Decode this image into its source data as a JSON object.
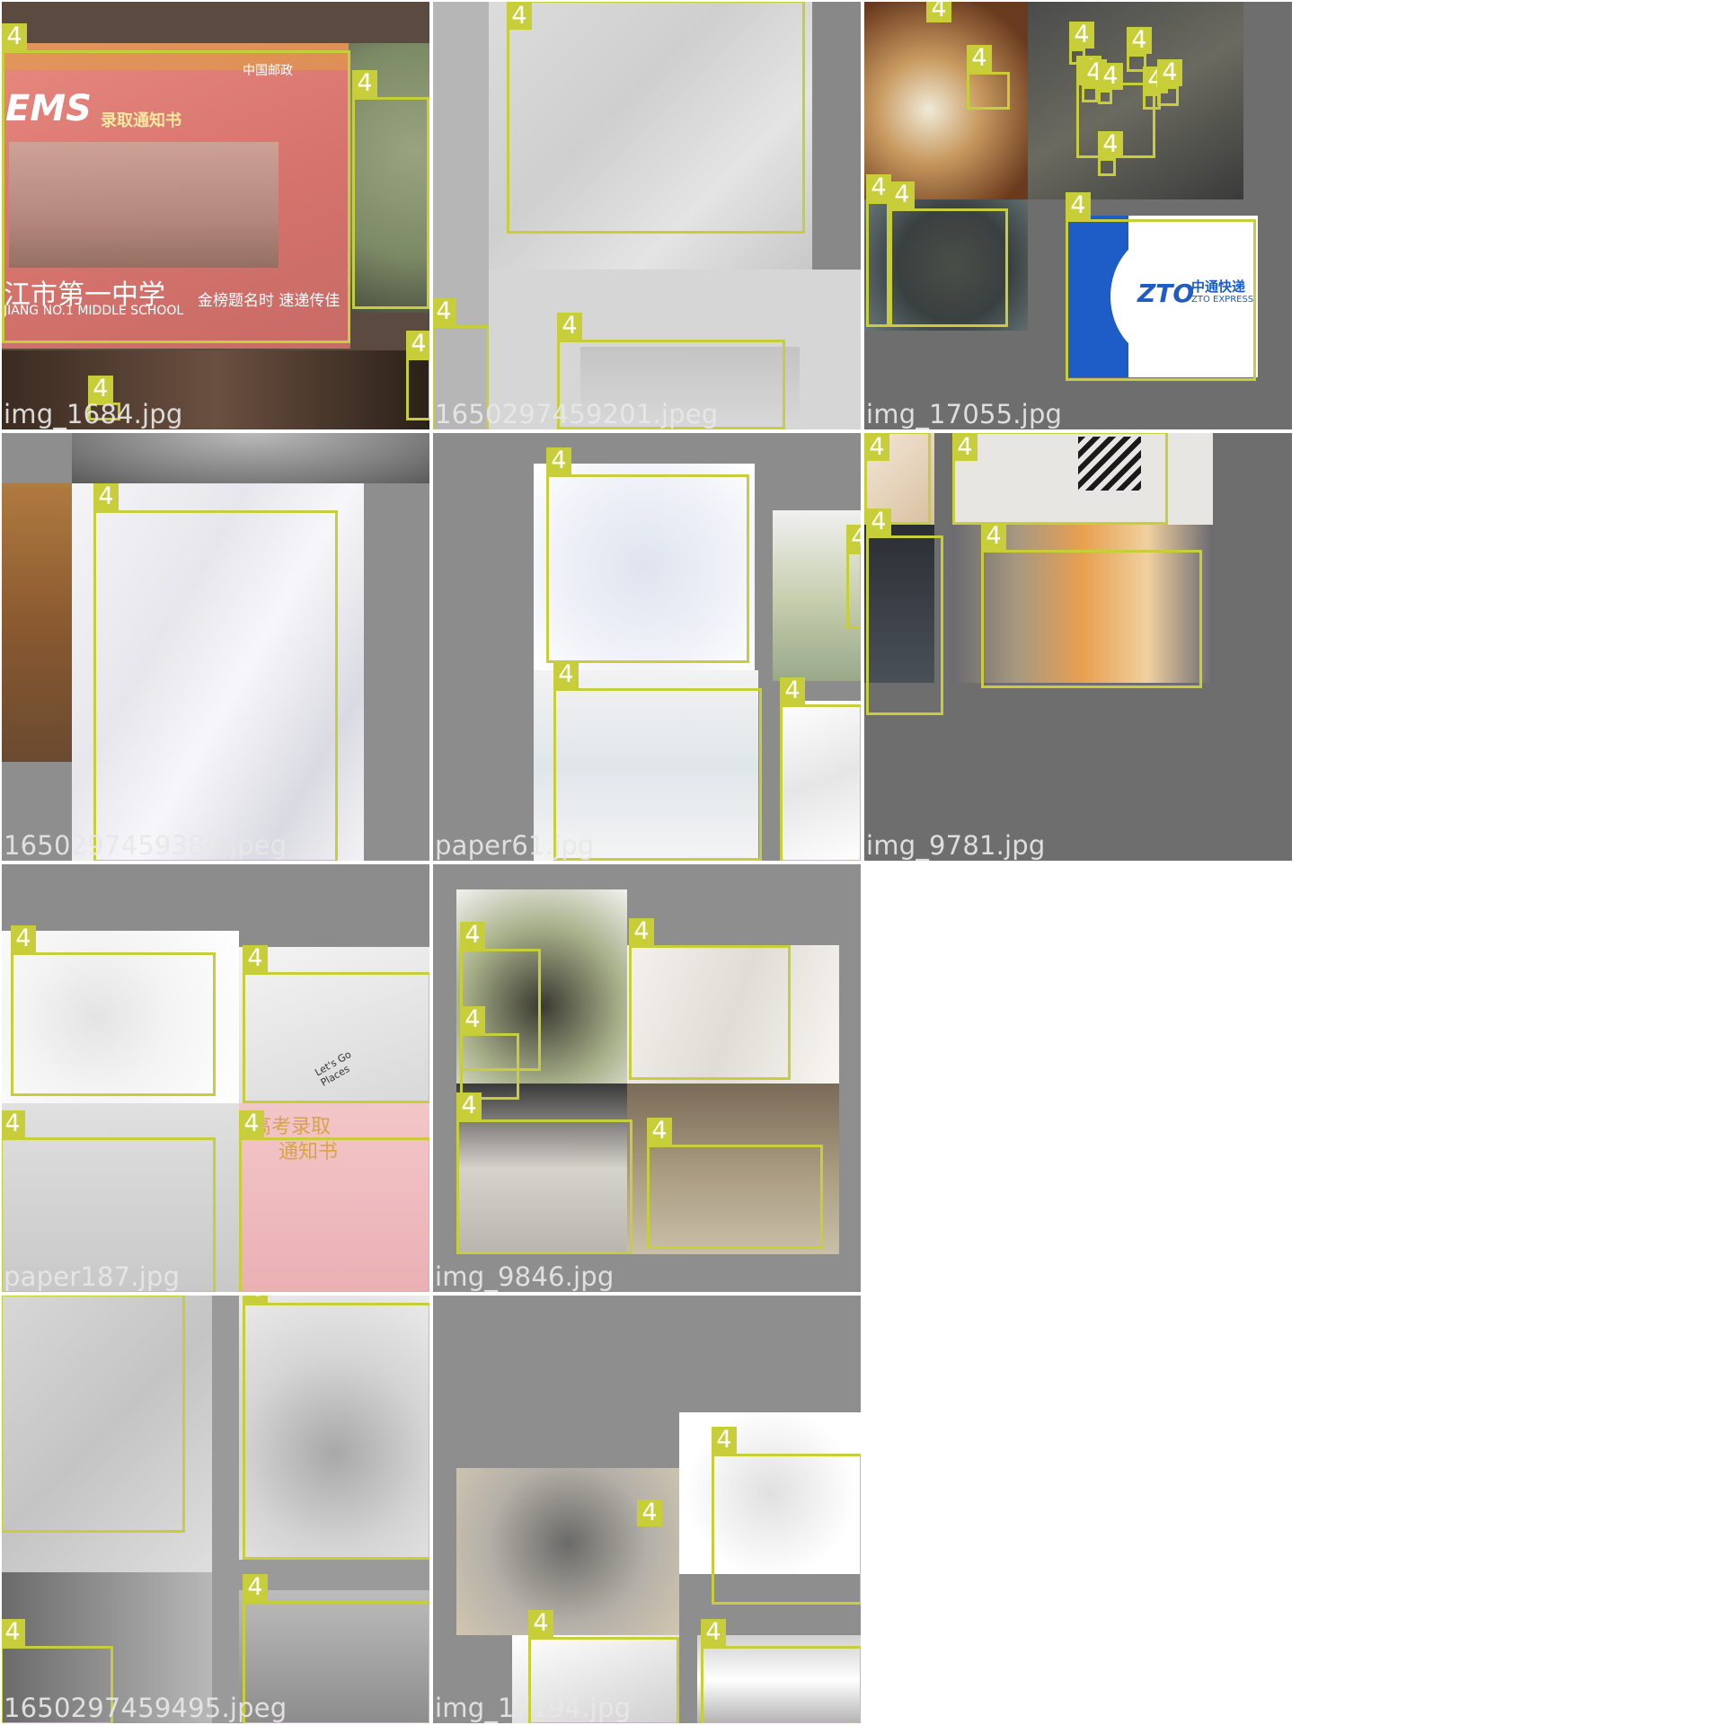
{
  "accent_color": "#c8cd3a",
  "class_label": "4",
  "tiles": [
    {
      "id": "r0c0",
      "filename": "img_1684.jpg",
      "photo_texts": [
        "EMS",
        "录取通知书",
        "中国邮政",
        "江市第一中学",
        "JIANG NO.1 MIDDLE SCHOOL",
        "金榜题名时 速递传佳"
      ]
    },
    {
      "id": "r0c1",
      "filename": "1650297459201.jpeg"
    },
    {
      "id": "r0c2",
      "filename": "img_17055.jpg",
      "photo_texts": [
        "ZTO",
        "中通快递",
        "ZTO EXPRESS"
      ]
    },
    {
      "id": "r1c0",
      "filename": "1650297459386.jpeg"
    },
    {
      "id": "r1c1",
      "filename": "paper61.jpg"
    },
    {
      "id": "r1c2",
      "filename": "img_9781.jpg"
    },
    {
      "id": "r2c0",
      "filename": "paper187.jpg",
      "photo_texts": [
        "Let's Go Places",
        "高考录取",
        "通知书"
      ]
    },
    {
      "id": "r2c1",
      "filename": "img_9846.jpg"
    },
    {
      "id": "r3c0",
      "filename": "1650297459495.jpeg"
    },
    {
      "id": "r3c1",
      "filename": "img_17194.jpg"
    }
  ]
}
